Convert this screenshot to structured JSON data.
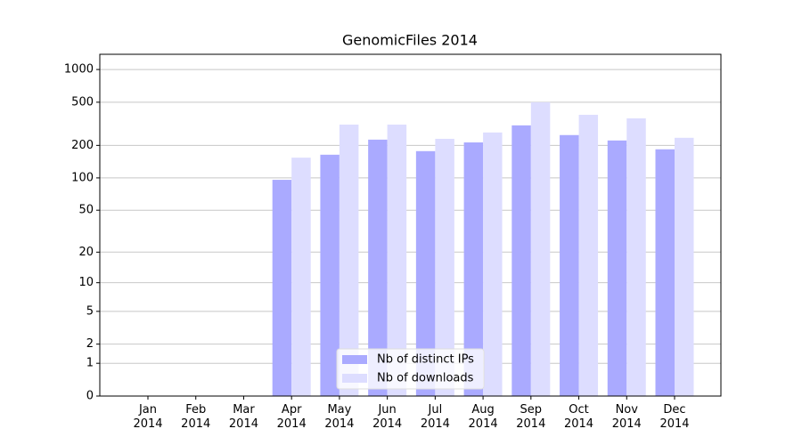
{
  "chart_data": {
    "type": "bar",
    "title": "GenomicFiles 2014",
    "categories": [
      "Jan 2014",
      "Feb 2014",
      "Mar 2014",
      "Apr 2014",
      "May 2014",
      "Jun 2014",
      "Jul 2014",
      "Aug 2014",
      "Sep 2014",
      "Oct 2014",
      "Nov 2014",
      "Dec 2014"
    ],
    "series": [
      {
        "name": "Nb of distinct IPs",
        "color": "#aaaaff",
        "values": [
          0,
          0,
          0,
          96,
          164,
          226,
          177,
          213,
          306,
          249,
          222,
          184
        ]
      },
      {
        "name": "Nb of downloads",
        "color": "#ddddff",
        "values": [
          0,
          0,
          0,
          154,
          311,
          311,
          230,
          263,
          500,
          383,
          355,
          235
        ]
      }
    ],
    "yscale": "log1p",
    "ylim": [
      0,
      1380
    ],
    "yticks": [
      0,
      1,
      2,
      5,
      10,
      20,
      50,
      100,
      200,
      500,
      1000
    ],
    "grid": true,
    "legend": "lower center"
  }
}
